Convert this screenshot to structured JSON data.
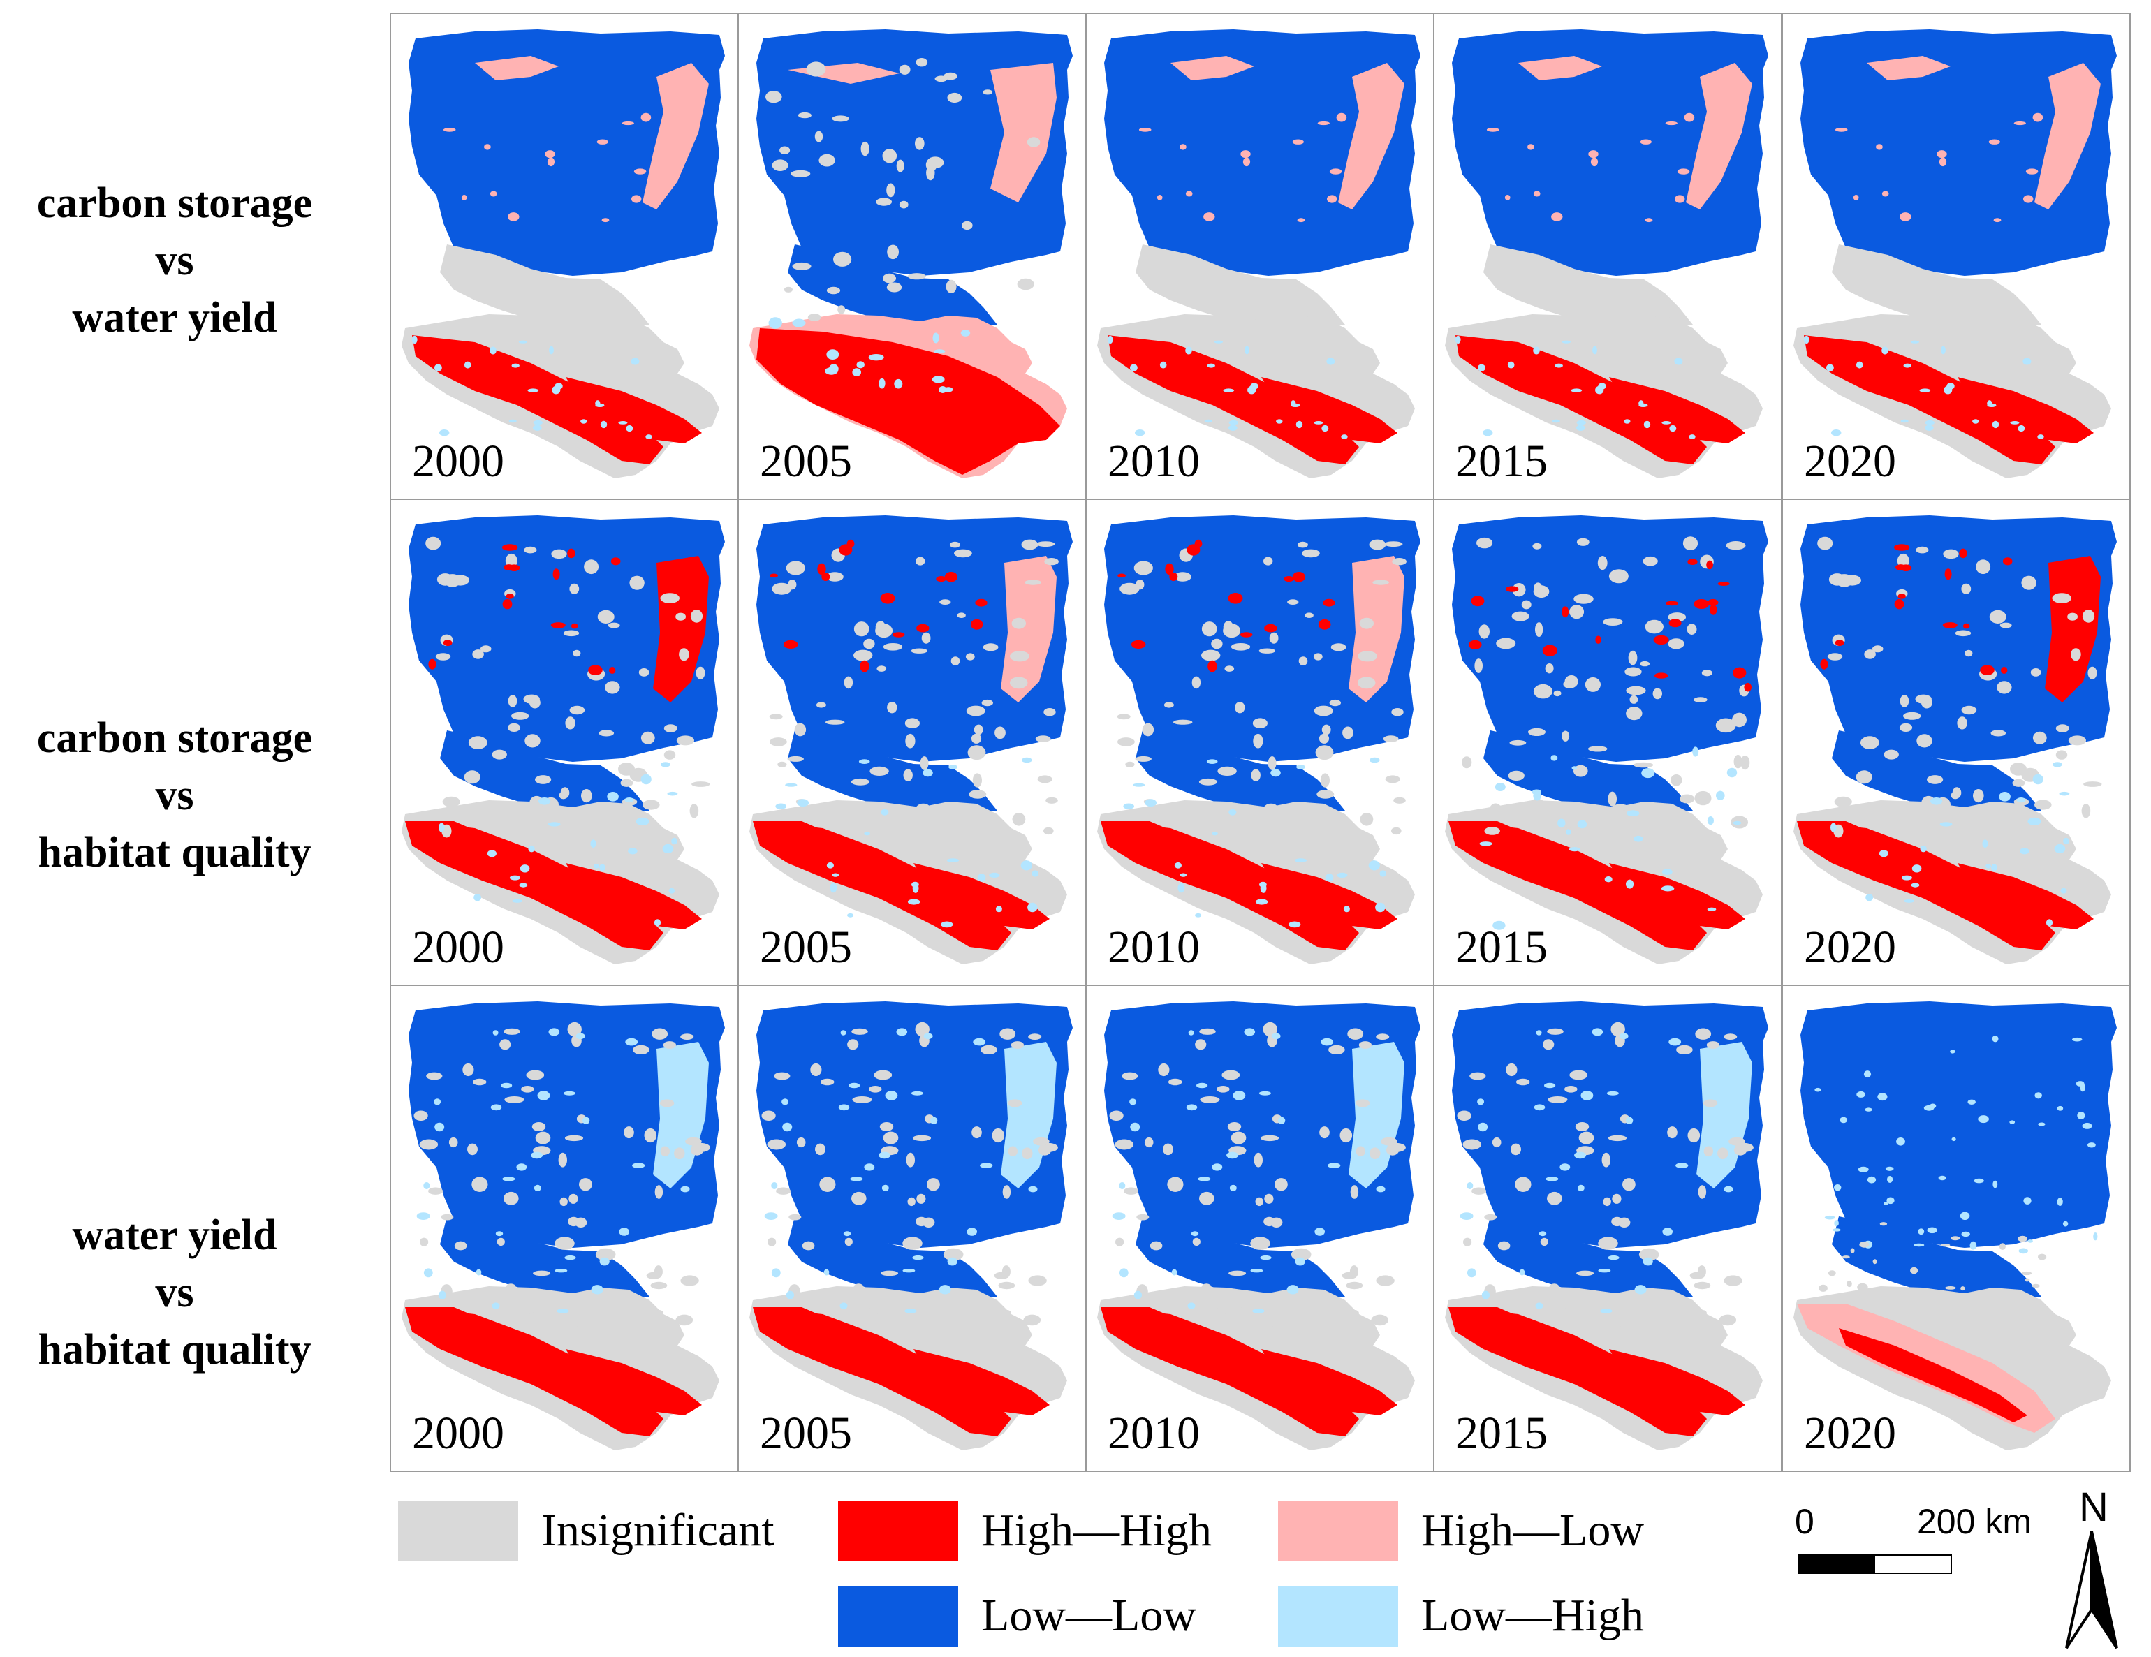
{
  "colors": {
    "insignificant": "#d9d9d9",
    "high_high": "#ff0000",
    "high_low": "#ffb3b3",
    "low_low": "#0a5ae0",
    "low_high": "#b3e5ff"
  },
  "rows": [
    {
      "label_lines": [
        "carbon storage",
        "vs",
        "water yield"
      ],
      "panels": [
        {
          "year": "2000",
          "pattern": "cw-a"
        },
        {
          "year": "2005",
          "pattern": "cw-b"
        },
        {
          "year": "2010",
          "pattern": "cw-a"
        },
        {
          "year": "2015",
          "pattern": "cw-a"
        },
        {
          "year": "2020",
          "pattern": "cw-a"
        }
      ]
    },
    {
      "label_lines": [
        "carbon storage",
        "vs",
        "habitat quality"
      ],
      "panels": [
        {
          "year": "2000",
          "pattern": "ch-hh"
        },
        {
          "year": "2005",
          "pattern": "ch-hl"
        },
        {
          "year": "2010",
          "pattern": "ch-hl"
        },
        {
          "year": "2015",
          "pattern": "ch-none"
        },
        {
          "year": "2020",
          "pattern": "ch-hh"
        }
      ]
    },
    {
      "label_lines": [
        "water yield",
        "vs",
        "habitat quality"
      ],
      "panels": [
        {
          "year": "2000",
          "pattern": "wh-a"
        },
        {
          "year": "2005",
          "pattern": "wh-a"
        },
        {
          "year": "2010",
          "pattern": "wh-a"
        },
        {
          "year": "2015",
          "pattern": "wh-a"
        },
        {
          "year": "2020",
          "pattern": "wh-b"
        }
      ]
    }
  ],
  "legend": [
    {
      "label": "Insignificant",
      "color_key": "insignificant"
    },
    {
      "label": "High—High",
      "color_key": "high_high"
    },
    {
      "label": "High—Low",
      "color_key": "high_low"
    },
    {
      "label": "Low—Low",
      "color_key": "low_low"
    },
    {
      "label": "Low—High",
      "color_key": "low_high"
    }
  ],
  "scale_bar": {
    "start": "0",
    "end": "200 km"
  },
  "north_arrow": {
    "letter": "N",
    "icon": "north-arrow-icon"
  }
}
